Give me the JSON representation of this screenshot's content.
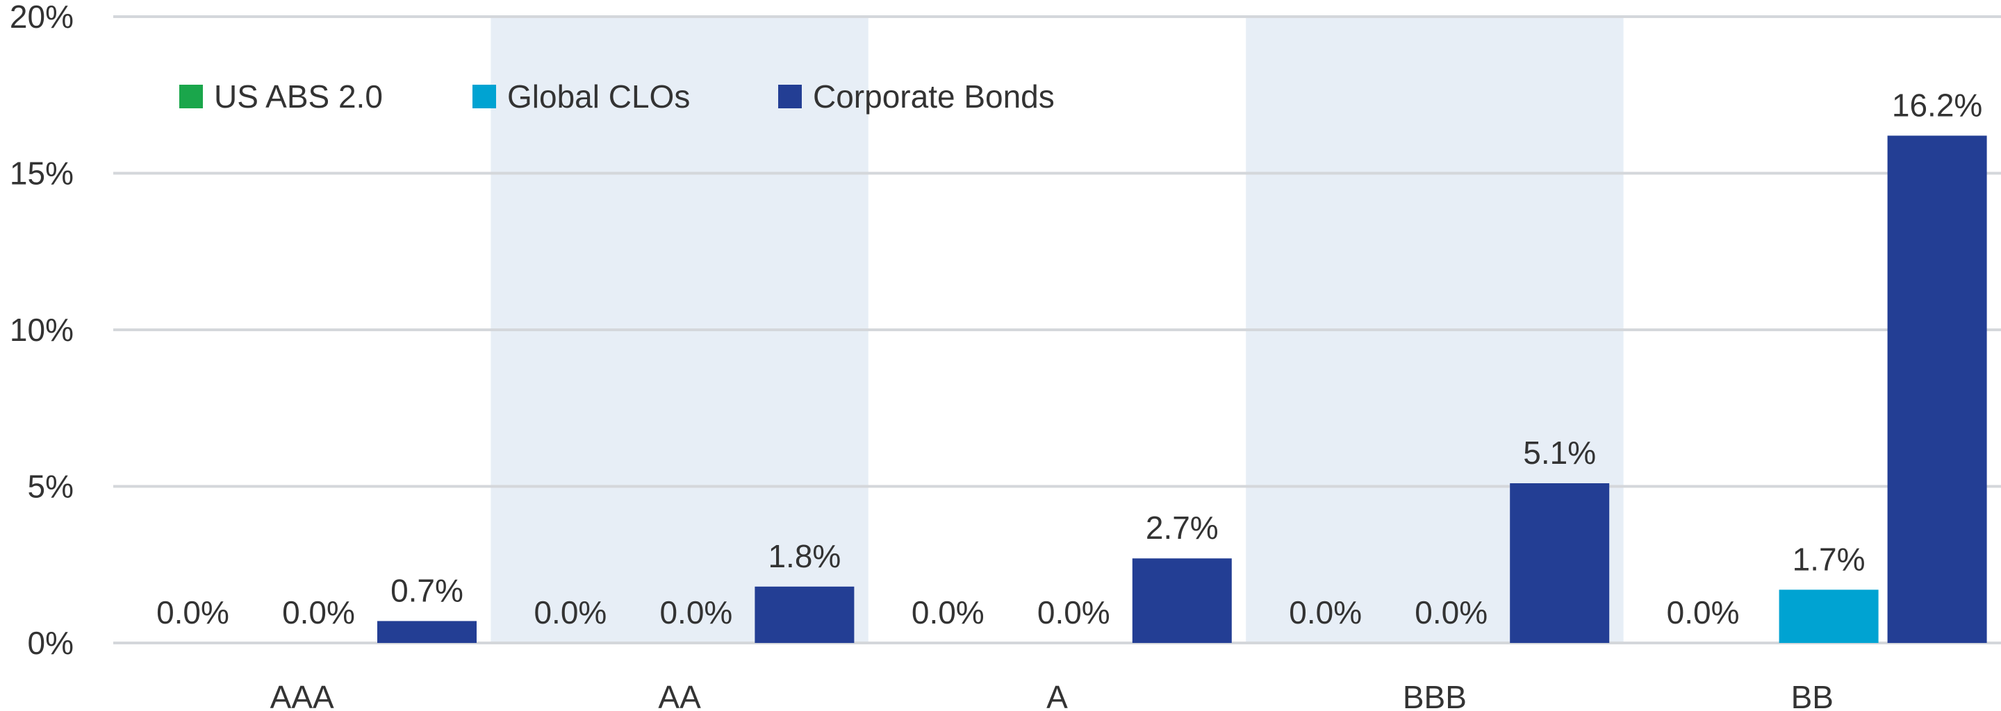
{
  "chart_data": {
    "type": "bar",
    "categories": [
      "AAA",
      "AA",
      "A",
      "BBB",
      "BB"
    ],
    "series": [
      {
        "name": "US ABS 2.0",
        "color": "#1aa64b",
        "values": [
          0.0,
          0.0,
          0.0,
          0.0,
          0.0
        ]
      },
      {
        "name": "Global CLOs",
        "color": "#00a3d2",
        "values": [
          0.0,
          0.0,
          0.0,
          0.0,
          1.7
        ]
      },
      {
        "name": "Corporate Bonds",
        "color": "#233e94",
        "values": [
          0.7,
          1.8,
          2.7,
          5.1,
          16.2
        ]
      }
    ],
    "value_labels": [
      [
        "0.0%",
        "0.0%",
        "0.0%",
        "0.0%",
        "0.0%"
      ],
      [
        "0.0%",
        "0.0%",
        "0.0%",
        "0.0%",
        "1.7%"
      ],
      [
        "0.7%",
        "1.8%",
        "2.7%",
        "5.1%",
        "16.2%"
      ]
    ],
    "y_ticks": [
      {
        "value": 0,
        "label": "0%"
      },
      {
        "value": 5,
        "label": "5%"
      },
      {
        "value": 10,
        "label": "10%"
      },
      {
        "value": 15,
        "label": "15%"
      },
      {
        "value": 20,
        "label": "20%"
      }
    ],
    "ylim": [
      0,
      20
    ],
    "title": "",
    "xlabel": "",
    "ylabel": "",
    "grid": true,
    "legend_position": "top-left",
    "alternate_band_color": "#e7eef6",
    "gridline_color": "#d4d7db"
  }
}
